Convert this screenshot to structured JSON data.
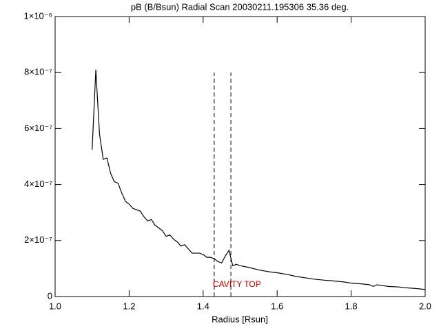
{
  "chart_data": {
    "type": "line",
    "title": "pB (B/Bsun) Radial Scan 20030211.195306 35.36 deg.",
    "x_label": "Radius [Rsun]",
    "annotation": "CAVITY TOP",
    "annotation_color": "#d00000",
    "color": "#000000",
    "x": [
      1.1,
      1.11,
      1.12,
      1.13,
      1.14,
      1.15,
      1.16,
      1.17,
      1.18,
      1.19,
      1.2,
      1.21,
      1.22,
      1.23,
      1.24,
      1.25,
      1.26,
      1.27,
      1.28,
      1.29,
      1.3,
      1.31,
      1.32,
      1.33,
      1.34,
      1.35,
      1.36,
      1.37,
      1.38,
      1.39,
      1.4,
      1.41,
      1.42,
      1.43,
      1.44,
      1.45,
      1.46,
      1.47,
      1.48,
      1.49,
      1.5,
      1.52,
      1.55,
      1.58,
      1.6,
      1.63,
      1.65,
      1.68,
      1.7,
      1.73,
      1.75,
      1.78,
      1.8,
      1.83,
      1.85,
      1.86,
      1.87,
      1.9,
      1.93,
      1.95,
      1.98,
      2.0
    ],
    "values": [
      5.25e-07,
      8.1e-07,
      5.8e-07,
      4.9e-07,
      4.95e-07,
      4.4e-07,
      4.1e-07,
      4.05e-07,
      3.7e-07,
      3.4e-07,
      3.3e-07,
      3.15e-07,
      3.1e-07,
      3.05e-07,
      2.85e-07,
      2.7e-07,
      2.75e-07,
      2.55e-07,
      2.45e-07,
      2.35e-07,
      2.15e-07,
      2.2e-07,
      2.05e-07,
      1.95e-07,
      1.8e-07,
      1.85e-07,
      1.7e-07,
      1.55e-07,
      1.55e-07,
      1.55e-07,
      1.5e-07,
      1.4e-07,
      1.4e-07,
      1.35e-07,
      1.25e-07,
      1.2e-07,
      1.45e-07,
      1.65e-07,
      1.1e-07,
      1.15e-07,
      1.1e-07,
      1.05e-07,
      9.5e-08,
      8.8e-08,
      8.5e-08,
      7.8e-08,
      7.2e-08,
      6.6e-08,
      6.2e-08,
      5.8e-08,
      5.6e-08,
      5.2e-08,
      4.8e-08,
      4.5e-08,
      4.2e-08,
      3.6e-08,
      4.2e-08,
      3.6e-08,
      3.4e-08,
      3.1e-08,
      2.8e-08,
      2.5e-08
    ],
    "vlines": [
      1.43,
      1.475
    ],
    "vline_ylim": [
      0,
      8e-07
    ],
    "xlim": [
      1.0,
      2.0
    ],
    "ylim": [
      0,
      1e-06
    ],
    "xticks": [
      {
        "value": 1.0,
        "label": "1.0"
      },
      {
        "value": 1.2,
        "label": "1.2"
      },
      {
        "value": 1.4,
        "label": "1.4"
      },
      {
        "value": 1.6,
        "label": "1.6"
      },
      {
        "value": 1.8,
        "label": "1.8"
      },
      {
        "value": 2.0,
        "label": "2.0"
      }
    ],
    "yticks": [
      0,
      {
        "value": 2e-07,
        "label": "2×10⁻⁷"
      },
      {
        "value": 4e-07,
        "label": "4×10⁻⁷"
      },
      {
        "value": 6e-07,
        "label": "6×10⁻⁷"
      },
      {
        "value": 8e-07,
        "label": "8×10⁻⁷"
      },
      {
        "value": 1e-06,
        "label": "1×10⁻⁶"
      }
    ]
  }
}
